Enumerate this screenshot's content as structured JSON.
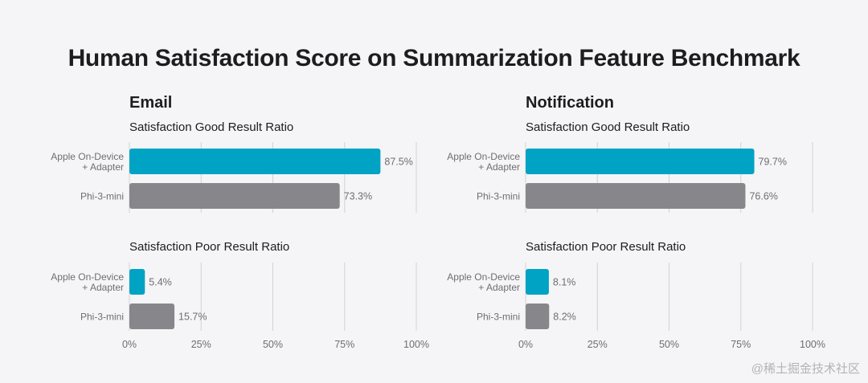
{
  "title": "Human Satisfaction Score on Summarization Feature Benchmark",
  "watermark": "@稀土掘金技术社区",
  "colors": {
    "apple": "#00a3c4",
    "phi": "#86868b",
    "grid": "#d2d2d7",
    "text": "#6e6e73",
    "heading": "#1d1d1f"
  },
  "chart_data": [
    {
      "type": "bar",
      "orientation": "horizontal",
      "panel": "Email",
      "title": "Satisfaction Good Result Ratio",
      "categories": [
        "Apple On-Device\n+ Adapter",
        "Phi-3-mini"
      ],
      "values": [
        87.5,
        73.3
      ],
      "value_labels": [
        "87.5%",
        "73.3%"
      ],
      "xlim": [
        0,
        100
      ]
    },
    {
      "type": "bar",
      "orientation": "horizontal",
      "panel": "Email",
      "title": "Satisfaction Poor Result Ratio",
      "categories": [
        "Apple On-Device\n+ Adapter",
        "Phi-3-mini"
      ],
      "values": [
        5.4,
        15.7
      ],
      "value_labels": [
        "5.4%",
        "15.7%"
      ],
      "xlim": [
        0,
        100
      ],
      "xticks": [
        "0%",
        "25%",
        "50%",
        "75%",
        "100%"
      ]
    },
    {
      "type": "bar",
      "orientation": "horizontal",
      "panel": "Notification",
      "title": "Satisfaction Good Result Ratio",
      "categories": [
        "Apple On-Device\n+ Adapter",
        "Phi-3-mini"
      ],
      "values": [
        79.7,
        76.6
      ],
      "value_labels": [
        "79.7%",
        "76.6%"
      ],
      "xlim": [
        0,
        100
      ]
    },
    {
      "type": "bar",
      "orientation": "horizontal",
      "panel": "Notification",
      "title": "Satisfaction Poor Result Ratio",
      "categories": [
        "Apple On-Device\n+ Adapter",
        "Phi-3-mini"
      ],
      "values": [
        8.1,
        8.2
      ],
      "value_labels": [
        "8.1%",
        "8.2%"
      ],
      "xlim": [
        0,
        100
      ],
      "xticks": [
        "0%",
        "25%",
        "50%",
        "75%",
        "100%"
      ]
    }
  ]
}
